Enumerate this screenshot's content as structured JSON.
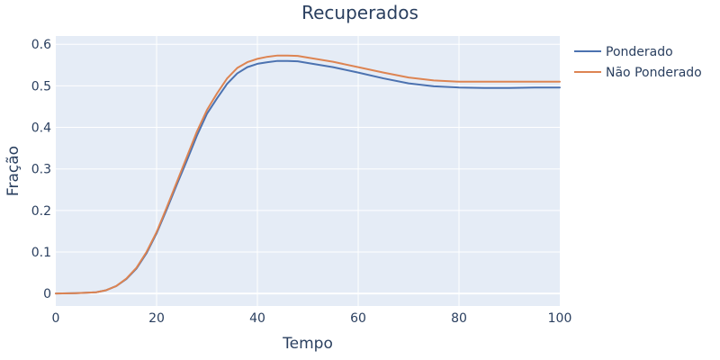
{
  "chart_data": {
    "type": "line",
    "title": "Recuperados",
    "xlabel": "Tempo",
    "ylabel": "Fração",
    "xlim": [
      0,
      100
    ],
    "ylim": [
      -0.03,
      0.62
    ],
    "x_ticks": [
      0,
      20,
      40,
      60,
      80,
      100
    ],
    "y_ticks": [
      0,
      0.1,
      0.2,
      0.3,
      0.4,
      0.5,
      0.6
    ],
    "grid": true,
    "legend_position": "top-right",
    "x": [
      0,
      4,
      8,
      10,
      12,
      14,
      16,
      18,
      20,
      22,
      24,
      26,
      28,
      30,
      32,
      34,
      36,
      38,
      40,
      42,
      44,
      46,
      48,
      50,
      55,
      60,
      65,
      70,
      75,
      80,
      85,
      90,
      95,
      100
    ],
    "series": [
      {
        "name": "Ponderado",
        "color": "#4c72b0",
        "values": [
          0.0,
          0.001,
          0.003,
          0.008,
          0.018,
          0.035,
          0.06,
          0.097,
          0.145,
          0.202,
          0.262,
          0.32,
          0.38,
          0.433,
          0.47,
          0.505,
          0.53,
          0.545,
          0.553,
          0.557,
          0.56,
          0.56,
          0.559,
          0.555,
          0.545,
          0.532,
          0.518,
          0.506,
          0.499,
          0.496,
          0.495,
          0.495,
          0.496,
          0.496
        ]
      },
      {
        "name": "Não Ponderado",
        "color": "#dd8452",
        "values": [
          0.0,
          0.001,
          0.003,
          0.008,
          0.018,
          0.036,
          0.062,
          0.1,
          0.148,
          0.207,
          0.268,
          0.329,
          0.39,
          0.442,
          0.482,
          0.518,
          0.543,
          0.557,
          0.565,
          0.57,
          0.573,
          0.573,
          0.572,
          0.568,
          0.558,
          0.545,
          0.532,
          0.52,
          0.513,
          0.51,
          0.51,
          0.51,
          0.51,
          0.51
        ]
      }
    ]
  }
}
